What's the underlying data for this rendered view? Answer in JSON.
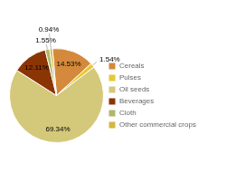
{
  "chart_data": {
    "type": "pie",
    "categories": [
      "Cereals",
      "Pulses",
      "Oil seeds",
      "Beverages",
      "Cloth",
      "Other commercial crops"
    ],
    "values": [
      14.53,
      1.54,
      69.34,
      12.11,
      1.55,
      0.94
    ],
    "value_labels": [
      "14.53%",
      "1.54%",
      "69.34%",
      "12.11%",
      "1.55%",
      "0.94%"
    ],
    "colors": [
      "#d4893c",
      "#e8c832",
      "#d4c87a",
      "#8b3505",
      "#b0b86a",
      "#d4b840"
    ],
    "legend": "right",
    "data_labels": true
  }
}
